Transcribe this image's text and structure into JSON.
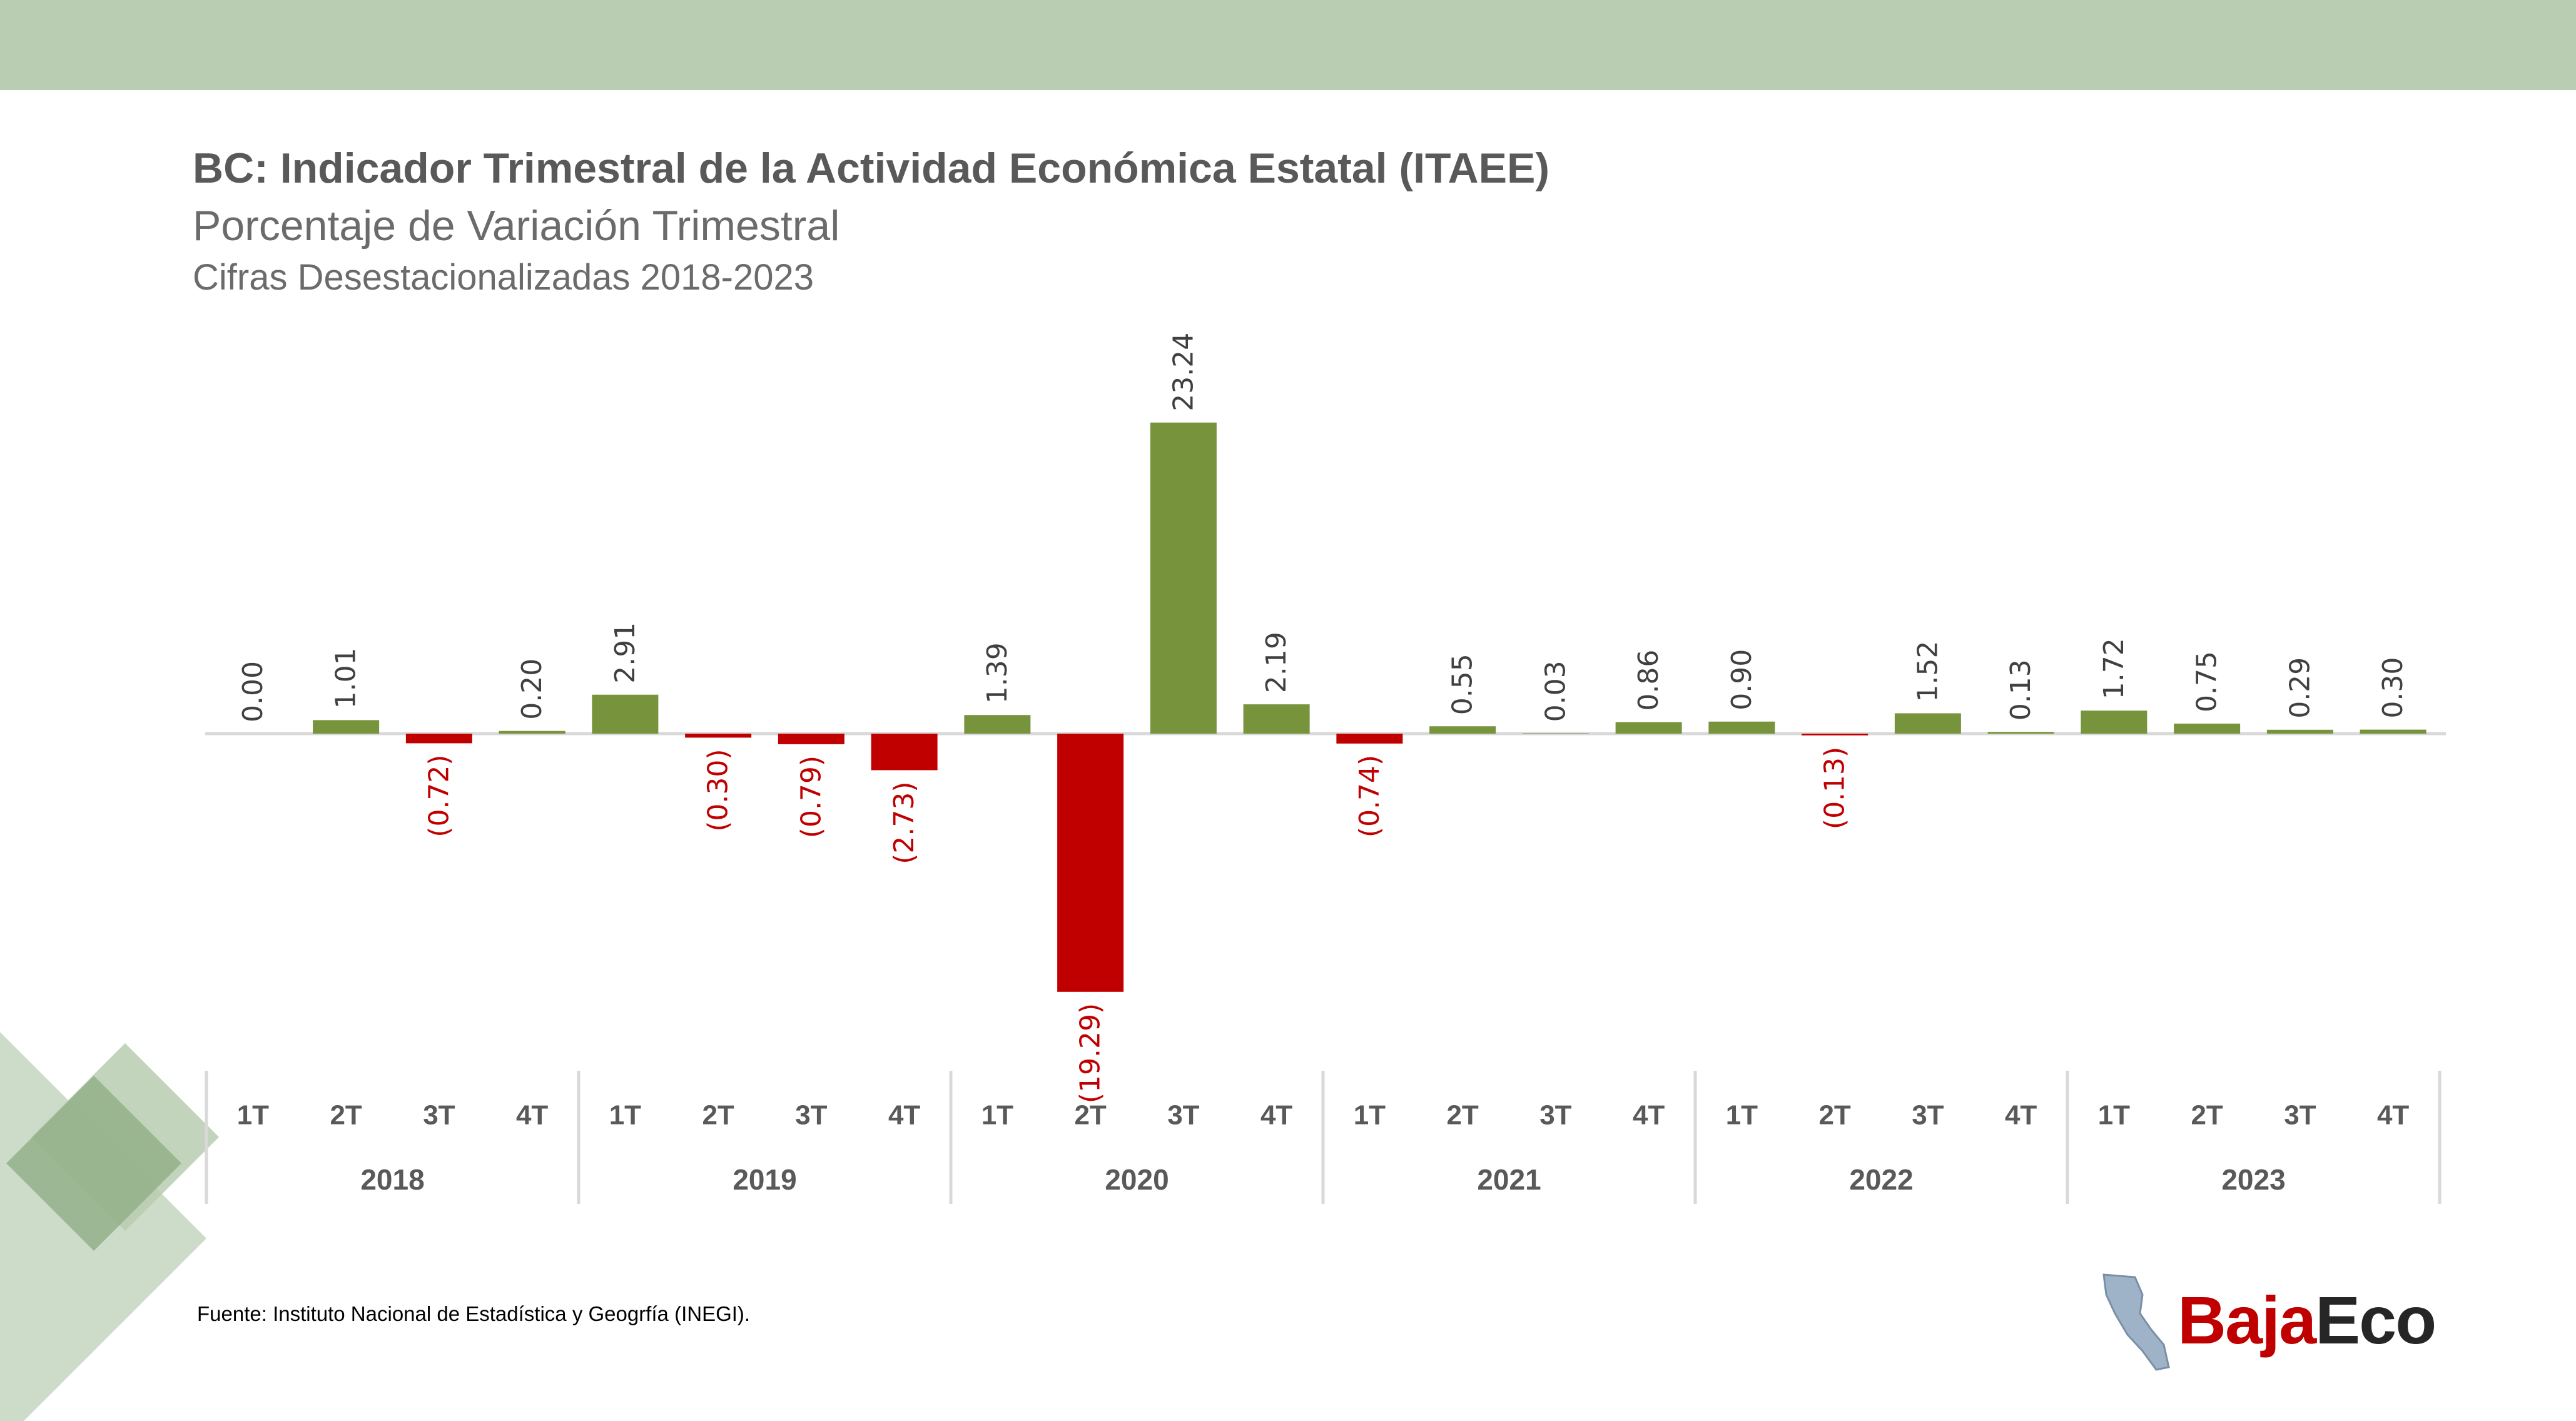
{
  "header": {
    "title": "BC: Indicador Trimestral de la Actividad Económica Estatal (ITAEE)",
    "subtitle": "Porcentaje de Variación Trimestral",
    "subtitle2": "Cifras Desestacionalizadas 2018-2023"
  },
  "colors": {
    "band": "#b8cdb2",
    "positive": "#77933c",
    "negative": "#c00000",
    "deco_light": "#b8cdb2",
    "deco_dark": "#8fae86"
  },
  "chart_data": {
    "type": "bar",
    "title": "BC: Indicador Trimestral de la Actividad Económica Estatal (ITAEE)",
    "subtitle": "Porcentaje de Variación Trimestral",
    "quarters": [
      "1T",
      "2T",
      "3T",
      "4T",
      "1T",
      "2T",
      "3T",
      "4T",
      "1T",
      "2T",
      "3T",
      "4T",
      "1T",
      "2T",
      "3T",
      "4T",
      "1T",
      "2T",
      "3T",
      "4T",
      "1T",
      "2T",
      "3T",
      "4T"
    ],
    "years": [
      "2018",
      "2019",
      "2020",
      "2021",
      "2022",
      "2023"
    ],
    "values": [
      0.0,
      1.01,
      -0.72,
      0.2,
      2.91,
      -0.3,
      -0.79,
      -2.73,
      1.39,
      -19.29,
      23.24,
      2.19,
      -0.74,
      0.55,
      0.03,
      0.86,
      0.9,
      -0.13,
      1.52,
      0.13,
      1.72,
      0.75,
      0.29,
      0.3
    ],
    "labels": [
      "0.00",
      "1.01",
      "(0.72)",
      "0.20",
      "2.91",
      "(0.30)",
      "(0.79)",
      "(2.73)",
      "1.39",
      "(19.29)",
      "23.24",
      "2.19",
      "(0.74)",
      "0.55",
      "0.03",
      "0.86",
      "0.90",
      "(0.13)",
      "1.52",
      "0.13",
      "1.72",
      "0.75",
      "0.29",
      "0.30"
    ],
    "ylim": [
      -19.29,
      23.24
    ],
    "grid": false,
    "legend": "none"
  },
  "footer": {
    "source": "Fuente: Instituto Nacional de Estadística y Geogrfía (INEGI)."
  },
  "logo": {
    "part1": "Baja",
    "part2": "Eco"
  }
}
